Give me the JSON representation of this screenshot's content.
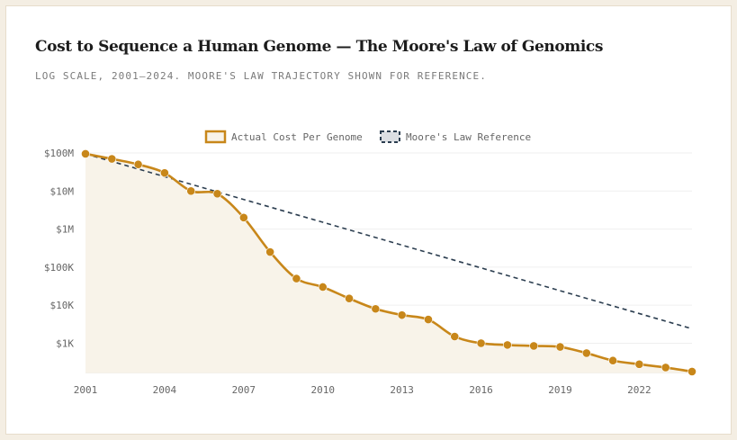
{
  "chart_data": {
    "type": "line",
    "title": "Cost to Sequence a Human Genome — The Moore's Law of Genomics",
    "subtitle": "LOG SCALE, 2001–2024. MOORE'S LAW TRAJECTORY SHOWN FOR REFERENCE.",
    "xlabel": "",
    "ylabel": "",
    "y_scale": "log",
    "ylim": [
      170,
      100000000
    ],
    "xlim": [
      2001,
      2024
    ],
    "x_ticks": [
      2001,
      2004,
      2007,
      2010,
      2013,
      2016,
      2019,
      2022
    ],
    "x_tick_labels": [
      "2001",
      "2004",
      "2007",
      "2010",
      "2013",
      "2016",
      "2019",
      "2022"
    ],
    "y_ticks": [
      100000000,
      10000000,
      1000000,
      100000,
      10000,
      1000
    ],
    "y_tick_labels": [
      "$100M",
      "$10M",
      "$1M",
      "$100K",
      "$10K",
      "$1K"
    ],
    "legend_position": "top-center",
    "series": [
      {
        "name": "Actual Cost Per Genome",
        "color": "#c8871a",
        "style": "solid",
        "markers": true,
        "area_fill": "#f8f3e9",
        "x": [
          2001,
          2002,
          2003,
          2004,
          2005,
          2006,
          2007,
          2008,
          2009,
          2010,
          2011,
          2012,
          2013,
          2014,
          2015,
          2016,
          2017,
          2018,
          2019,
          2020,
          2021,
          2022,
          2023,
          2024
        ],
        "values": [
          95000000,
          70000000,
          50000000,
          30000000,
          10000000,
          8500000,
          2000000,
          250000,
          50000,
          30000,
          15000,
          8000,
          5500,
          4200,
          1500,
          1000,
          900,
          850,
          800,
          550,
          350,
          280,
          230,
          180
        ]
      },
      {
        "name": "Moore's Law Reference",
        "color": "#2c3e50",
        "style": "dashed",
        "markers": false,
        "x": [
          2001,
          2024
        ],
        "values": [
          95000000,
          2400
        ]
      }
    ]
  }
}
